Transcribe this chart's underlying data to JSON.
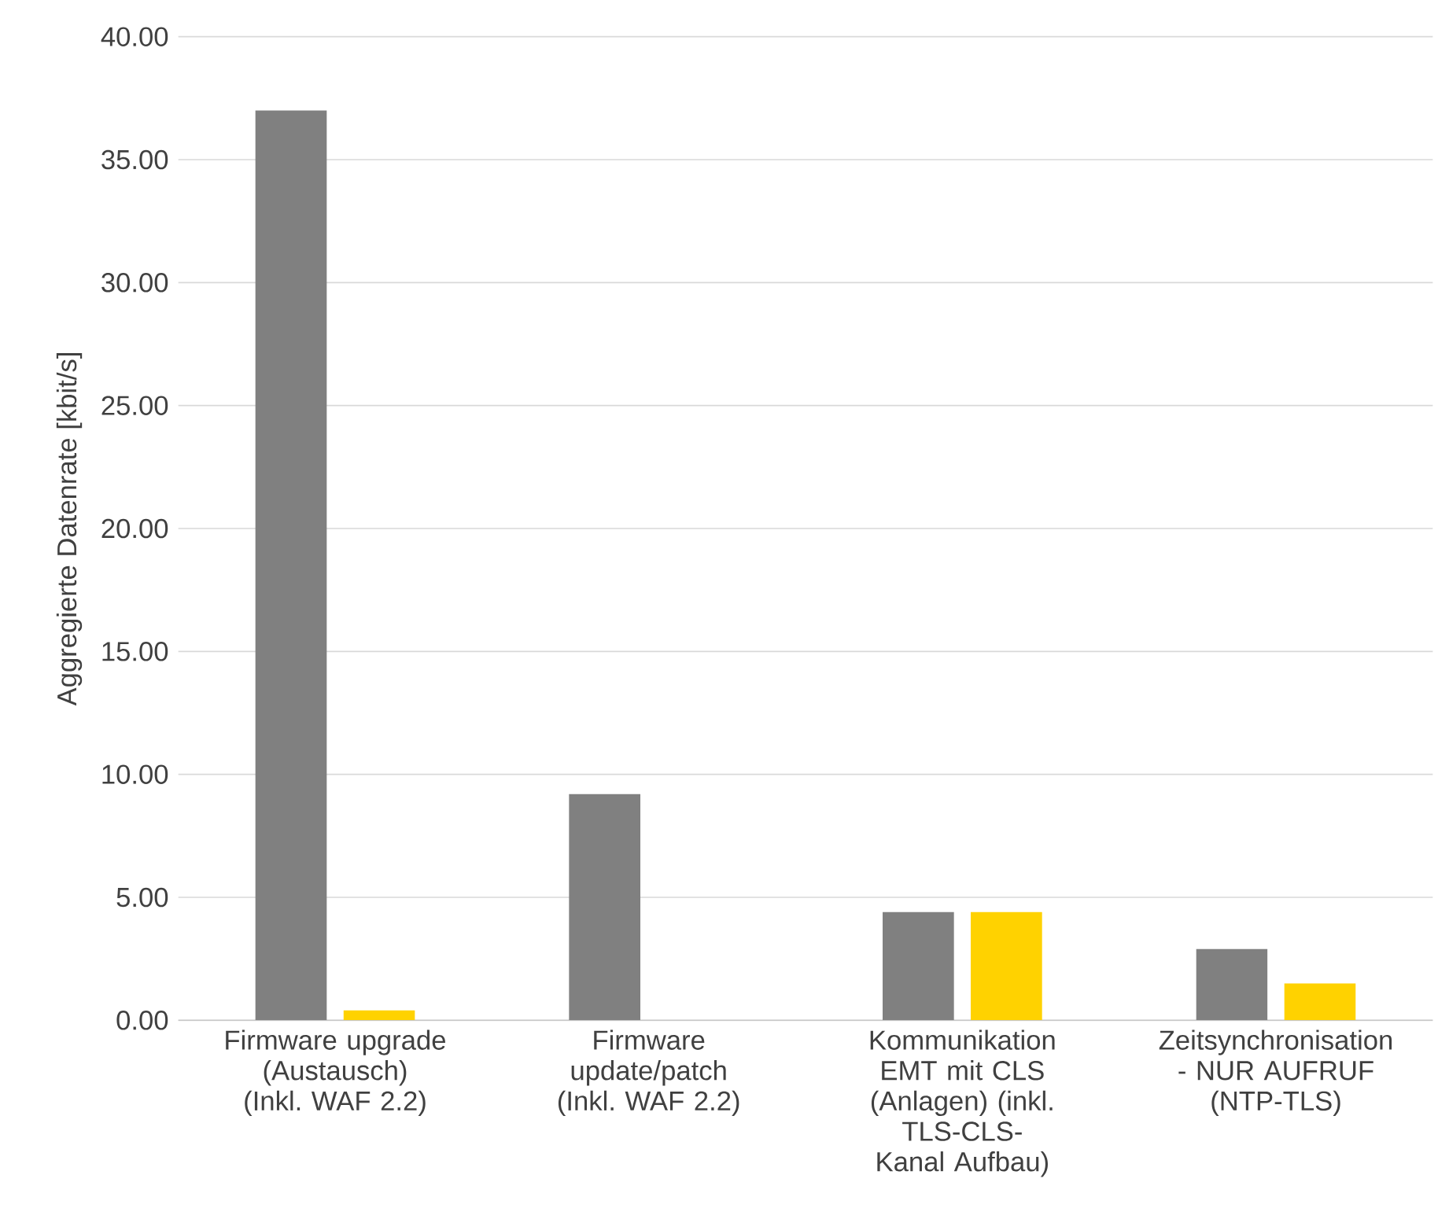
{
  "chart_data": {
    "type": "bar",
    "ylabel": "Aggregierte Datenrate [kbit/s]",
    "categories": [
      "Firmware upgrade (Austausch) (Inkl. WAF 2.2)",
      "Firmware update/patch (Inkl. WAF 2.2)",
      "Kommunikation EMT mit CLS (Anlagen) (inkl. TLS-CLS-Kanal Aufbau)",
      "Zeitsynchronisation - NUR AUFRUF (NTP-TLS)"
    ],
    "series": [
      {
        "color": "#808080",
        "values": [
          37.0,
          9.2,
          4.4,
          2.9
        ]
      },
      {
        "color": "#ffd200",
        "values": [
          0.4,
          null,
          4.4,
          1.5
        ]
      }
    ],
    "ylim": [
      0,
      40
    ],
    "yticks": [
      {
        "value": 0,
        "label": "0.00"
      },
      {
        "value": 5,
        "label": "5.00"
      },
      {
        "value": 10,
        "label": "10.00"
      },
      {
        "value": 15,
        "label": "15.00"
      },
      {
        "value": 20,
        "label": "20.00"
      },
      {
        "value": 25,
        "label": "25.00"
      },
      {
        "value": 30,
        "label": "30.00"
      },
      {
        "value": 35,
        "label": "35.00"
      },
      {
        "value": 40,
        "label": "40.00"
      }
    ],
    "grid": "y"
  }
}
